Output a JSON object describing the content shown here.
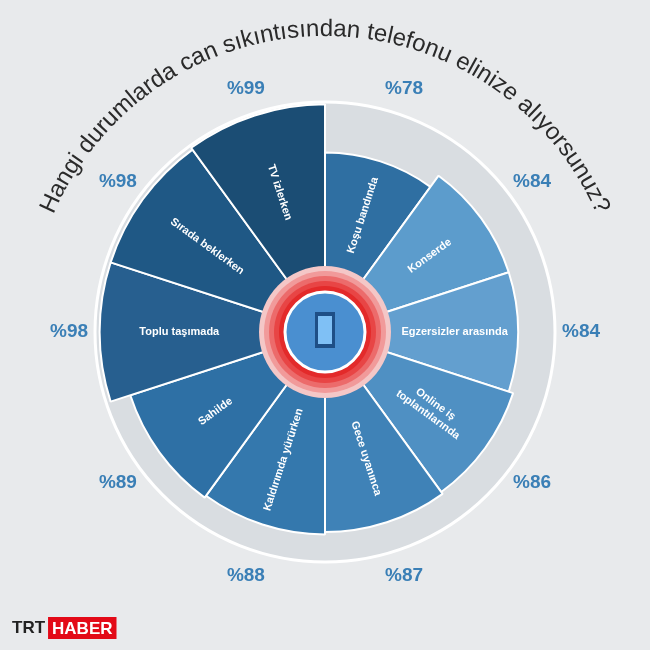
{
  "chart_data": {
    "type": "polarArea",
    "title": "Hangi durumlarda can sıkıntısından telefonu elinize alıyorsunuz?",
    "categories": [
      "Koşu bandında",
      "Konserde",
      "Egzersizler arasında",
      "Online iş toplantılarında",
      "Gece uyanınca",
      "Kaldırımda yürürken",
      "Sahilde",
      "Toplu taşımada",
      "Sırada beklerken",
      "TV izlerken"
    ],
    "values": [
      78,
      84,
      84,
      86,
      87,
      88,
      89,
      98,
      98,
      99
    ],
    "value_labels": [
      "%78",
      "%84",
      "%84",
      "%86",
      "%87",
      "%88",
      "%89",
      "%98",
      "%98",
      "%99"
    ],
    "colors": [
      "#2f6fa2",
      "#5c9ccc",
      "#639fcf",
      "#4f90c3",
      "#3f82b7",
      "#3478ad",
      "#2e70a5",
      "#275f8f",
      "#1f5885",
      "#1b4d74"
    ],
    "ylim": [
      0,
      100
    ],
    "tick_labels": false,
    "grid": false,
    "data_labels": true,
    "source": "TRT HABER"
  }
}
